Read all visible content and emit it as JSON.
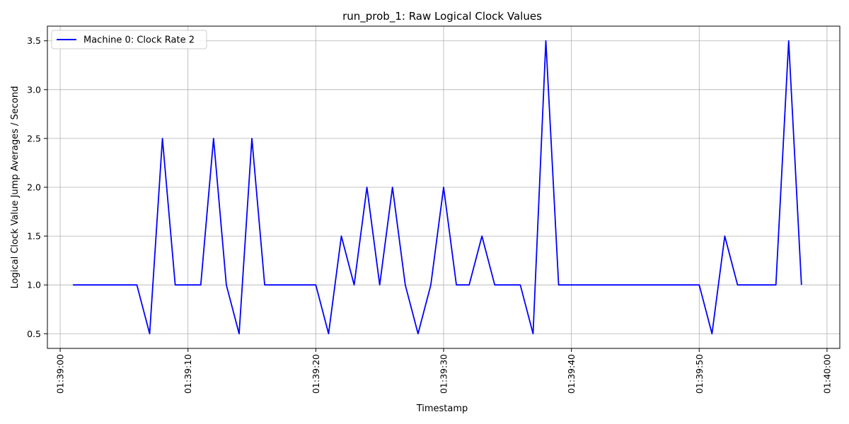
{
  "chart_data": {
    "type": "line",
    "title": "run_prob_1: Raw Logical Clock Values",
    "xlabel": "Timestamp",
    "ylabel": "Logical Clock Value Jump Averages / Second",
    "x_ticks": [
      "01:39:00",
      "01:39:10",
      "01:39:20",
      "01:39:30",
      "01:39:40",
      "01:39:50",
      "01:40:00"
    ],
    "y_ticks": [
      "0.5",
      "1.0",
      "1.5",
      "2.0",
      "2.5",
      "3.0",
      "3.5"
    ],
    "xlim": [
      "01:38:59",
      "01:40:01"
    ],
    "ylim": [
      0.35,
      3.65
    ],
    "grid": true,
    "legend_position": "upper-left",
    "series": [
      {
        "name": "Machine 0: Clock Rate 2",
        "color": "#0000ff",
        "x": [
          "01:39:01",
          "01:39:02",
          "01:39:03",
          "01:39:04",
          "01:39:05",
          "01:39:06",
          "01:39:07",
          "01:39:08",
          "01:39:09",
          "01:39:10",
          "01:39:11",
          "01:39:12",
          "01:39:13",
          "01:39:14",
          "01:39:15",
          "01:39:16",
          "01:39:17",
          "01:39:18",
          "01:39:19",
          "01:39:20",
          "01:39:21",
          "01:39:22",
          "01:39:23",
          "01:39:24",
          "01:39:25",
          "01:39:26",
          "01:39:27",
          "01:39:28",
          "01:39:29",
          "01:39:30",
          "01:39:31",
          "01:39:32",
          "01:39:33",
          "01:39:34",
          "01:39:35",
          "01:39:36",
          "01:39:37",
          "01:39:38",
          "01:39:39",
          "01:39:40",
          "01:39:41",
          "01:39:42",
          "01:39:43",
          "01:39:44",
          "01:39:45",
          "01:39:46",
          "01:39:47",
          "01:39:48",
          "01:39:49",
          "01:39:50",
          "01:39:51",
          "01:39:52",
          "01:39:53",
          "01:39:54",
          "01:39:55",
          "01:39:56",
          "01:39:57",
          "01:39:58"
        ],
        "y": [
          1.0,
          1.0,
          1.0,
          1.0,
          1.0,
          1.0,
          0.5,
          2.5,
          1.0,
          1.0,
          1.0,
          2.5,
          1.0,
          0.5,
          2.5,
          1.0,
          1.0,
          1.0,
          1.0,
          1.0,
          0.5,
          1.5,
          1.0,
          2.0,
          1.0,
          2.0,
          1.0,
          0.5,
          1.0,
          2.0,
          1.0,
          1.0,
          1.5,
          1.0,
          1.0,
          1.0,
          0.5,
          3.5,
          1.0,
          1.0,
          1.0,
          1.0,
          1.0,
          1.0,
          1.0,
          1.0,
          1.0,
          1.0,
          1.0,
          1.0,
          0.5,
          1.5,
          1.0,
          1.0,
          1.0,
          1.0,
          3.5,
          1.0
        ]
      }
    ]
  }
}
